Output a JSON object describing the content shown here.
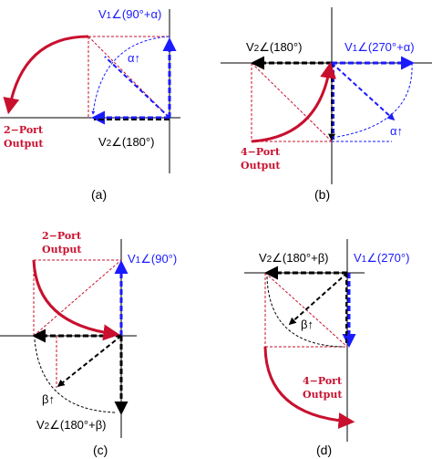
{
  "colors": {
    "axis": "#000000",
    "v1": "#1a1aff",
    "v2": "#000000",
    "output": "#c8102e",
    "guide": "#c8102e",
    "arc": "#1a1aff"
  },
  "panels": {
    "a": {
      "caption": "(a)",
      "v1_label": "V",
      "v1_sub": "1",
      "v1_angle": "∠(90°+α)",
      "v2_label": "V",
      "v2_sub": "2",
      "v2_angle": "∠(180°)",
      "alpha_label": "α↑",
      "output_line1": "2−Port",
      "output_line2": "Output"
    },
    "b": {
      "caption": "(b)",
      "v1_label": "V",
      "v1_sub": "1",
      "v1_angle": "∠(270°+α)",
      "v2_label": "V",
      "v2_sub": "2",
      "v2_angle": "∠(180°)",
      "alpha_label": "α↑",
      "output_line1": "4−Port",
      "output_line2": "Output"
    },
    "c": {
      "caption": "(c)",
      "v1_label": "V",
      "v1_sub": "1",
      "v1_angle": "∠(90°)",
      "v2_label": "V",
      "v2_sub": "2",
      "v2_angle": "∠(180°+β)",
      "beta_label": "β↑",
      "output_line1": "2−Port",
      "output_line2": "Output"
    },
    "d": {
      "caption": "(d)",
      "v1_label": "V",
      "v1_sub": "1",
      "v1_angle": "∠(270°)",
      "v2_label": "V",
      "v2_sub": "2",
      "v2_angle": "∠(180°+β)",
      "beta_label": "β↑",
      "output_line1": "4−Port",
      "output_line2": "Output"
    }
  }
}
